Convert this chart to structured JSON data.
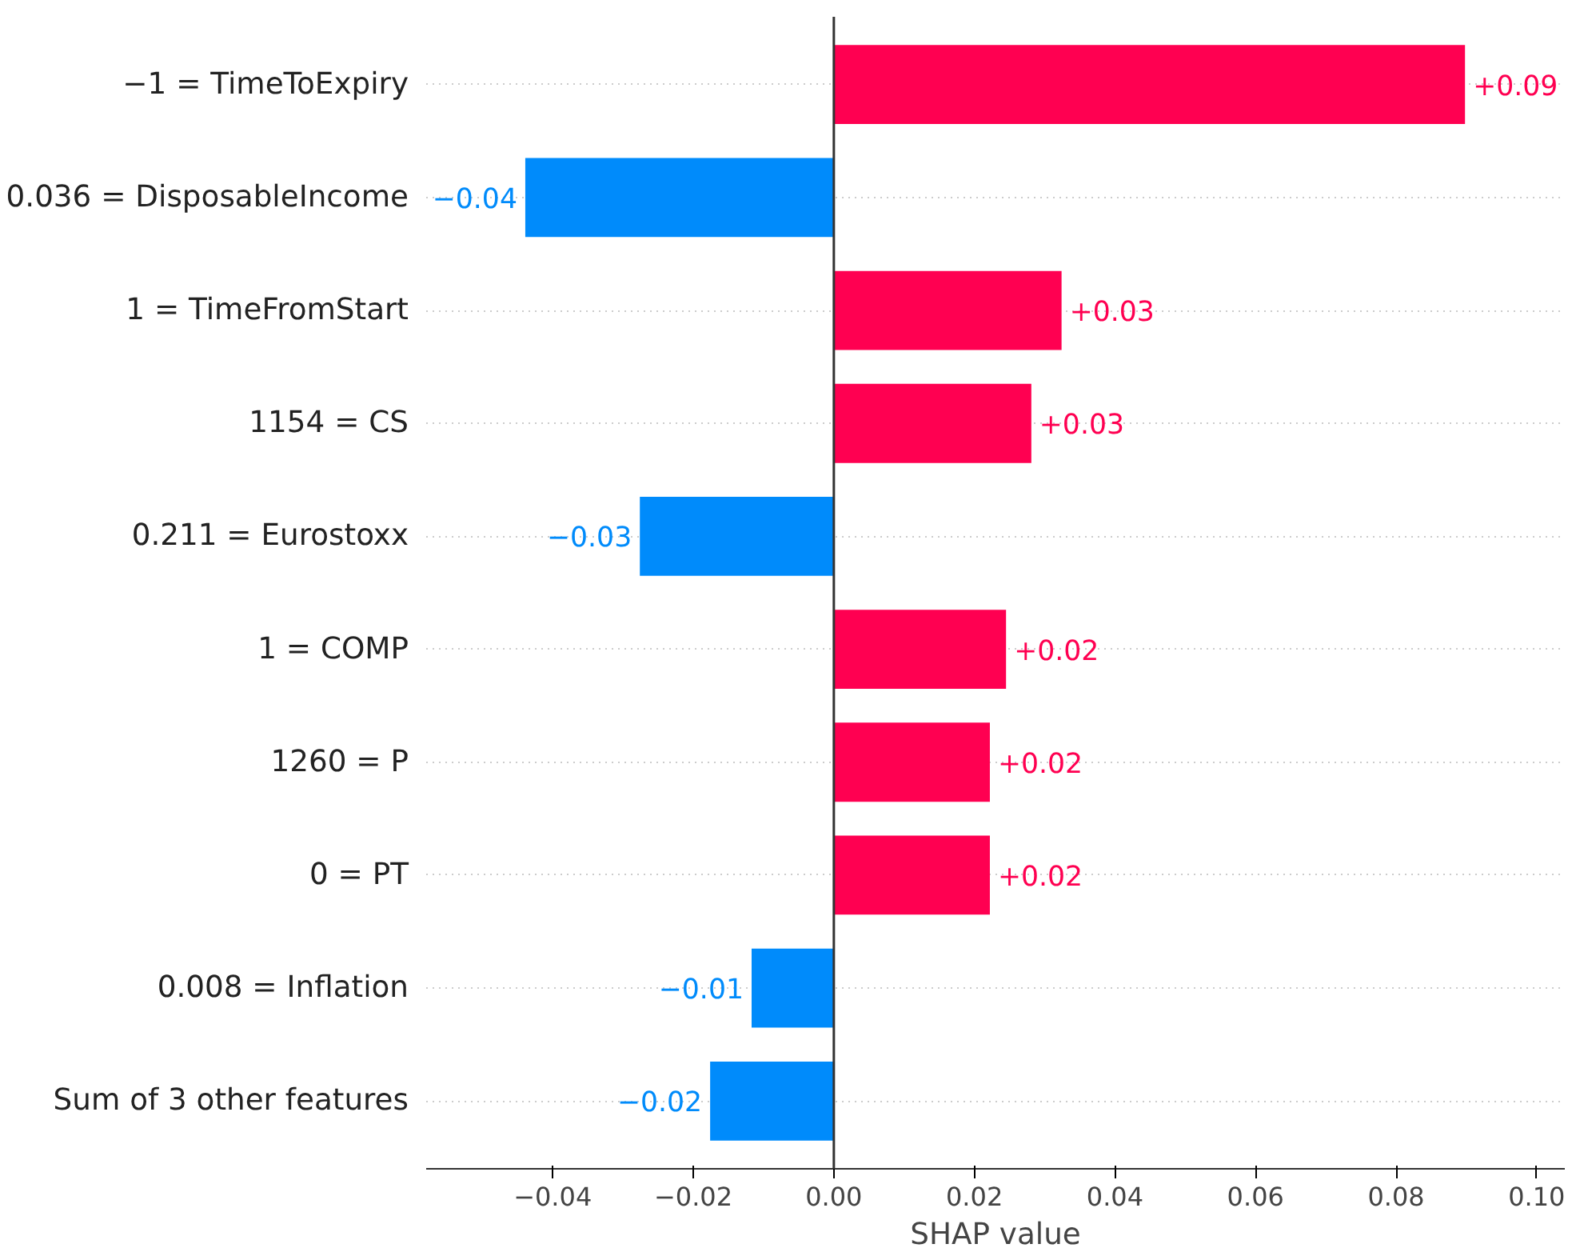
{
  "chart_data": {
    "type": "bar",
    "orientation": "horizontal",
    "xlabel": "SHAP value",
    "categories": [
      "−1 = TimeToExpiry",
      "0.036 = DisposableIncome",
      "1 = TimeFromStart",
      "1154 = CS",
      "0.211 = Eurostoxx",
      "1 = COMP",
      "1260 = P",
      "0 = PT",
      "0.008 = Inflation",
      "Sum of 3 other features"
    ],
    "values": [
      0.0898,
      -0.0439,
      0.0324,
      0.0281,
      -0.0276,
      0.0245,
      0.0222,
      0.0222,
      -0.0117,
      -0.0176
    ],
    "colors": [
      "#ff0051",
      "#008bfb",
      "#ff0051",
      "#ff0051",
      "#008bfb",
      "#ff0051",
      "#ff0051",
      "#ff0051",
      "#008bfb",
      "#008bfb"
    ],
    "value_labels": [
      "+0.09",
      "−0.04",
      "+0.03",
      "+0.03",
      "−0.03",
      "+0.02",
      "+0.02",
      "+0.02",
      "−0.01",
      "−0.02"
    ],
    "xlim": [
      -0.058,
      0.104
    ],
    "xticks": [
      {
        "value": -0.04,
        "label": "−0.04"
      },
      {
        "value": -0.02,
        "label": "−0.02"
      },
      {
        "value": 0,
        "label": "0.00"
      },
      {
        "value": 0.02,
        "label": "0.02"
      },
      {
        "value": 0.04,
        "label": "0.04"
      },
      {
        "value": 0.06,
        "label": "0.06"
      },
      {
        "value": 0.08,
        "label": "0.08"
      },
      {
        "value": 0.1,
        "label": "0.10"
      }
    ],
    "ref_lines": [
      {
        "axis": "x",
        "value": 0,
        "color": "#333333",
        "line_style": "solid"
      }
    ],
    "grid": "y",
    "line_style": "dotted"
  }
}
